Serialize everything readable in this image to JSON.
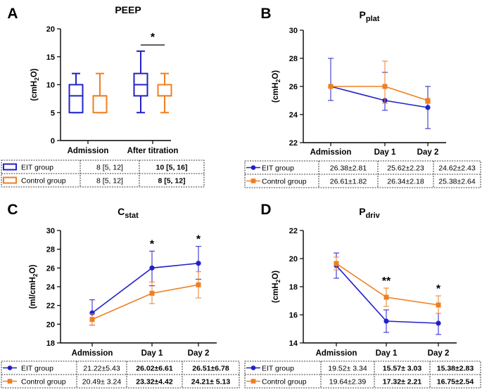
{
  "colors": {
    "eit": "#2121c8",
    "control": "#ef7f22"
  },
  "legend": {
    "eit": "EIT group",
    "control": "Control group"
  },
  "chart_data": [
    {
      "panel": "A",
      "type": "box",
      "title": "PEEP",
      "title_sub": "",
      "ylabel": "(cmH2O)",
      "ylabel_main": "(cmH",
      "ylabel_sub": "2",
      "ylabel_end": "O)",
      "ylim": [
        0,
        20
      ],
      "yticks": [
        0,
        5,
        10,
        15,
        20
      ],
      "categories": [
        "Admission",
        "After titration"
      ],
      "series": [
        {
          "name": "EIT group",
          "boxes": [
            {
              "min": 5,
              "q1": 5,
              "median": 8,
              "q3": 10,
              "max": 12
            },
            {
              "min": 5,
              "q1": 8,
              "median": 10,
              "q3": 12,
              "max": 16
            }
          ]
        },
        {
          "name": "Control group",
          "boxes": [
            {
              "min": 5,
              "q1": 5,
              "median": 8,
              "q3": 8,
              "max": 12
            },
            {
              "min": 5,
              "q1": 8,
              "median": 8,
              "q3": 10,
              "max": 12
            }
          ]
        }
      ],
      "annotations": [
        {
          "category": "After titration",
          "text": "*",
          "bracket": true
        }
      ],
      "table": [
        {
          "label": "EIT group",
          "cells": [
            {
              "t": "8 [5, 12]",
              "b": false
            },
            {
              "t": "10 [5, 16]",
              "b": true
            }
          ]
        },
        {
          "label": "Control group",
          "cells": [
            {
              "t": "8 [5, 12]",
              "b": false
            },
            {
              "t": "8 [5, 12]",
              "b": true
            }
          ]
        }
      ]
    },
    {
      "panel": "B",
      "type": "line",
      "title": "P",
      "title_sub": "plat",
      "ylabel": "(cmH2O)",
      "ylabel_main": "(cmH",
      "ylabel_sub": "2",
      "ylabel_end": "O)",
      "ylim": [
        22,
        30
      ],
      "yticks": [
        22,
        24,
        26,
        28,
        30
      ],
      "categories": [
        "Admission",
        "Day 1",
        "Day 2"
      ],
      "series": [
        {
          "name": "EIT group",
          "values": [
            26.0,
            25.0,
            24.5
          ],
          "err_low": [
            25.0,
            24.3,
            23.0
          ],
          "err_high": [
            28.0,
            27.0,
            26.0
          ]
        },
        {
          "name": "Control group",
          "values": [
            26.0,
            26.0,
            25.0
          ],
          "err_low": [
            26.0,
            24.8,
            24.8
          ],
          "err_high": [
            26.0,
            27.8,
            25.0
          ]
        }
      ],
      "annotations": [],
      "table": [
        {
          "label": "EIT group",
          "cells": [
            {
              "t": "26.38±2.81",
              "b": false
            },
            {
              "t": "25.62±2.23",
              "b": false
            },
            {
              "t": "24.62±2.43",
              "b": false
            }
          ]
        },
        {
          "label": "Control group",
          "cells": [
            {
              "t": "26.61±1.82",
              "b": false
            },
            {
              "t": "26.34±2.18",
              "b": false
            },
            {
              "t": "25.38±2.64",
              "b": false
            }
          ]
        }
      ]
    },
    {
      "panel": "C",
      "type": "line",
      "title": "C",
      "title_sub": "stat",
      "ylabel": "(ml/cmH2O)",
      "ylabel_main": "(ml/cmH",
      "ylabel_sub": "2",
      "ylabel_end": "O)",
      "ylim": [
        18,
        30
      ],
      "yticks": [
        18,
        20,
        22,
        24,
        26,
        28,
        30
      ],
      "categories": [
        "Admission",
        "Day 1",
        "Day 2"
      ],
      "series": [
        {
          "name": "EIT group",
          "values": [
            21.2,
            26.0,
            26.5
          ],
          "err_low": [
            19.9,
            24.1,
            24.8
          ],
          "err_high": [
            22.6,
            27.8,
            28.3
          ]
        },
        {
          "name": "Control group",
          "values": [
            20.5,
            23.3,
            24.2
          ],
          "err_low": [
            19.9,
            22.2,
            22.8
          ],
          "err_high": [
            21.1,
            24.5,
            25.6
          ]
        }
      ],
      "annotations": [
        {
          "category": "Day 1",
          "text": "*"
        },
        {
          "category": "Day 2",
          "text": "*"
        }
      ],
      "table": [
        {
          "label": "EIT group",
          "cells": [
            {
              "t": "21.22±5.43",
              "b": false
            },
            {
              "t": "26.02±6.61",
              "b": true
            },
            {
              "t": "26.51±6.78",
              "b": true
            }
          ]
        },
        {
          "label": "Control group",
          "cells": [
            {
              "t": "20.49± 3.24",
              "b": false
            },
            {
              "t": "23.32±4.42",
              "b": true
            },
            {
              "t": "24.21± 5.13",
              "b": true
            }
          ]
        }
      ]
    },
    {
      "panel": "D",
      "type": "line",
      "title": "P",
      "title_sub": "driv",
      "ylabel": "(cmH2O)",
      "ylabel_main": "(cmH",
      "ylabel_sub": "2",
      "ylabel_end": "O)",
      "ylim": [
        14,
        22
      ],
      "yticks": [
        14,
        16,
        18,
        20,
        22
      ],
      "categories": [
        "Admission",
        "Day 1",
        "Day 2"
      ],
      "series": [
        {
          "name": "EIT group",
          "values": [
            19.5,
            15.55,
            15.4
          ],
          "err_low": [
            18.6,
            14.75,
            14.6
          ],
          "err_high": [
            20.4,
            16.35,
            16.1
          ]
        },
        {
          "name": "Control group",
          "values": [
            19.65,
            17.25,
            16.7
          ],
          "err_low": [
            19.2,
            16.6,
            16.1
          ],
          "err_high": [
            20.1,
            17.9,
            17.35
          ]
        }
      ],
      "annotations": [
        {
          "category": "Day 1",
          "text": "**"
        },
        {
          "category": "Day 2",
          "text": "*"
        }
      ],
      "table": [
        {
          "label": "EIT group",
          "cells": [
            {
              "t": "19.52± 3.34",
              "b": false
            },
            {
              "t": "15.57± 3.03",
              "b": true
            },
            {
              "t": "15.38±2.83",
              "b": true
            }
          ]
        },
        {
          "label": "Control group",
          "cells": [
            {
              "t": "19.64±2.39",
              "b": false
            },
            {
              "t": "17.32± 2.21",
              "b": true
            },
            {
              "t": "16.75±2.54",
              "b": true
            }
          ]
        }
      ]
    }
  ]
}
